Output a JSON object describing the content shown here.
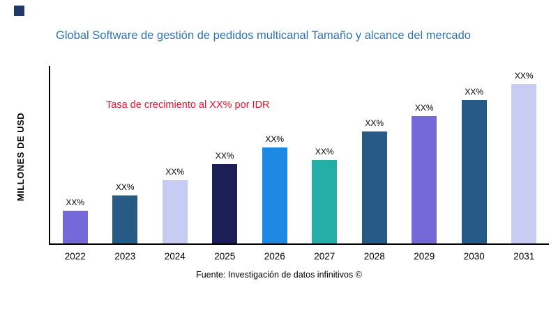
{
  "chart_data": {
    "type": "bar",
    "title": "Global Software de gestión de pedidos multicanal Tamaño y alcance del mercado",
    "ylabel": "MILLONES DE USD",
    "xlabel": "",
    "annotation": "Tasa de crecimiento al XX% por IDR",
    "annotation_color": "#E8112D",
    "source": "Fuente: Investigación de datos infinitivos ©",
    "categories": [
      "2022",
      "2023",
      "2024",
      "2025",
      "2026",
      "2027",
      "2028",
      "2029",
      "2030",
      "2031"
    ],
    "values": [
      47,
      69,
      91,
      114,
      138,
      120,
      161,
      183,
      206,
      229
    ],
    "point_labels": [
      "XX%",
      "XX%",
      "XX%",
      "XX%",
      "XX%",
      "XX%",
      "XX%",
      "XX%",
      "XX%",
      "XX%"
    ],
    "colors": [
      "#7568D9",
      "#275A84",
      "#C9CCF2",
      "#1B1F55",
      "#1E88E5",
      "#23AFA8",
      "#275A84",
      "#7568D9",
      "#275A84",
      "#C9CCF2"
    ],
    "title_color": "#2E74B5",
    "logo_color": "#1F3864",
    "grid": false,
    "legend": "none",
    "ylim": [
      0,
      255
    ]
  }
}
